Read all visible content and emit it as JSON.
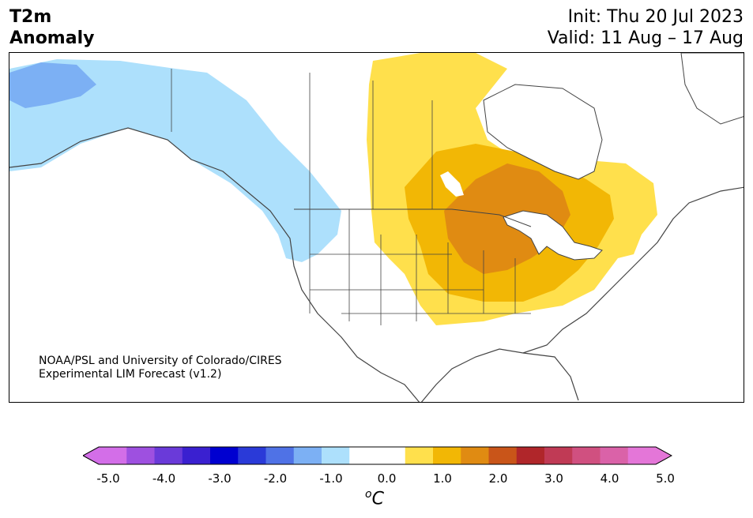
{
  "header": {
    "title_line1": "T2m",
    "title_line2": "Anomaly",
    "init": "Init: Thu 20 Jul 2023",
    "valid": "Valid: 11 Aug – 17 Aug"
  },
  "credit": {
    "line1": "NOAA/PSL and University of Colorado/CIRES",
    "line2": "Experimental LIM Forecast (v1.2)"
  },
  "colorbar": {
    "unit_base": "C",
    "unit_sup": "o",
    "tick_labels": [
      "-5.0",
      "-4.0",
      "-3.0",
      "-2.0",
      "-1.0",
      "0.0",
      "1.0",
      "2.0",
      "3.0",
      "4.0",
      "5.0"
    ],
    "colors": [
      "#d36ee8",
      "#9e50e0",
      "#6a3ad9",
      "#3a20d0",
      "#0000d0",
      "#2a3ad8",
      "#4f72e6",
      "#7cb0f4",
      "#ade0fc",
      "#ffffff",
      "#ffffff",
      "#ffe04c",
      "#f2b705",
      "#e08b12",
      "#c95519",
      "#b0262a",
      "#c03a55",
      "#d05080",
      "#da62a8",
      "#e476d8"
    ]
  },
  "map_colors": {
    "light_blue": "#ade0fc",
    "mid_blue": "#7cb0f4",
    "yellow": "#ffe04c",
    "gold": "#f2b705",
    "orange": "#e08b12",
    "border": "#444444"
  }
}
